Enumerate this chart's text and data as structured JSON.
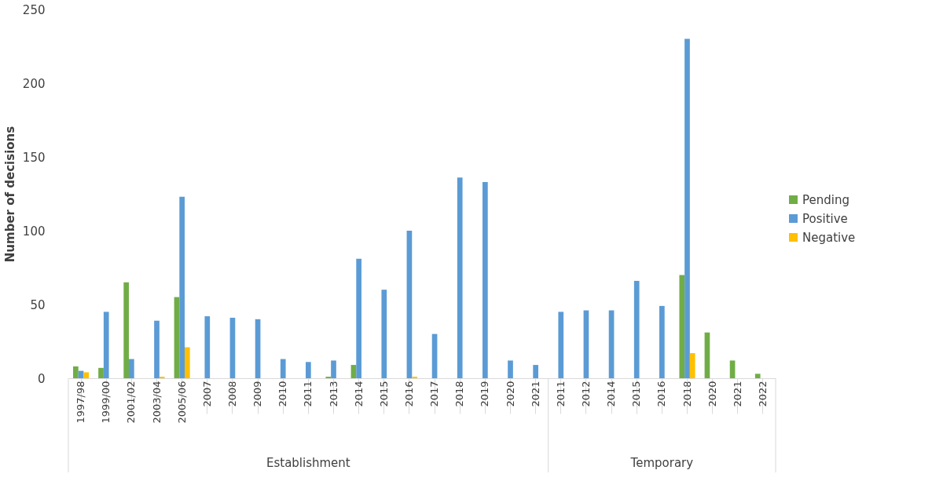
{
  "chart_data": {
    "type": "bar",
    "ylabel": "Number of decisions",
    "categories": [
      "1997/98",
      "1999/00",
      "2001/02",
      "2003/04",
      "2005/06",
      "2007",
      "2008",
      "2009",
      "2010",
      "2011",
      "2013",
      "2014",
      "2015",
      "2016",
      "2017",
      "2018",
      "2019",
      "2020",
      "2021",
      "2011",
      "2012",
      "2014",
      "2015",
      "2016",
      "2018",
      "2020",
      "2021",
      "2022"
    ],
    "series": [
      {
        "name": "Pending",
        "color": "#70ad47",
        "values": [
          8,
          7,
          65,
          null,
          55,
          null,
          null,
          null,
          null,
          null,
          1,
          9,
          null,
          null,
          null,
          null,
          null,
          null,
          null,
          null,
          null,
          null,
          null,
          null,
          70,
          31,
          12,
          3
        ]
      },
      {
        "name": "Positive",
        "color": "#5b9bd5",
        "values": [
          5,
          45,
          13,
          39,
          123,
          42,
          41,
          40,
          13,
          11,
          12,
          81,
          60,
          100,
          30,
          136,
          133,
          12,
          9,
          45,
          46,
          46,
          66,
          49,
          230,
          null,
          null,
          null
        ]
      },
      {
        "name": "Negative",
        "color": "#ffc000",
        "values": [
          4,
          null,
          null,
          1,
          21,
          null,
          null,
          null,
          null,
          null,
          null,
          null,
          null,
          1,
          null,
          null,
          null,
          null,
          null,
          null,
          null,
          null,
          null,
          null,
          17,
          null,
          null,
          null
        ]
      }
    ],
    "annotations": [
      "Establishment",
      "Temporary"
    ],
    "ylim": [
      0,
      250
    ],
    "yticks": [
      0,
      50,
      100,
      150,
      200,
      250
    ],
    "grid": false,
    "legend": "right"
  }
}
